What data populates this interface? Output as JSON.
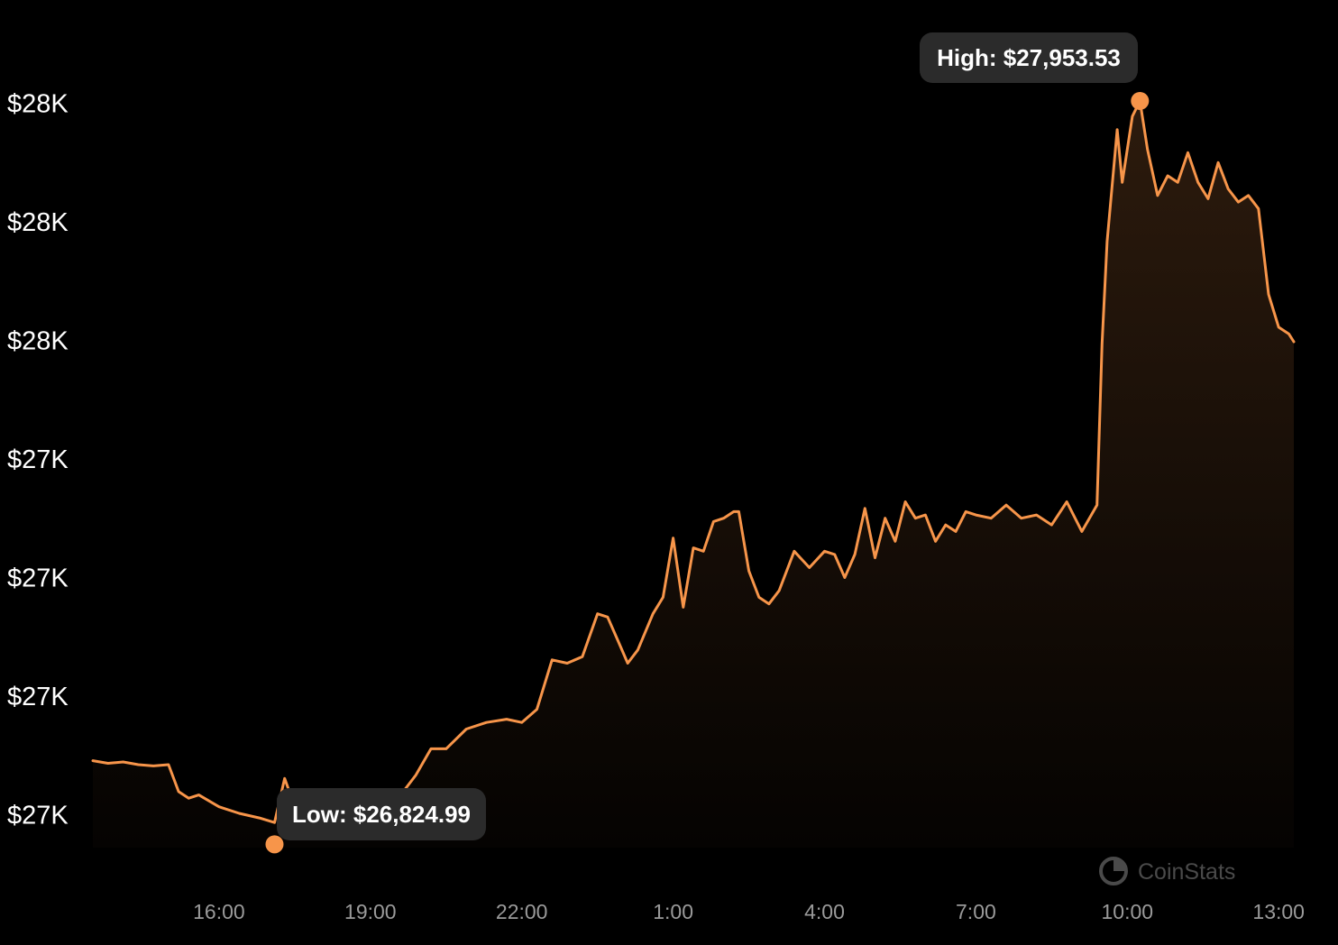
{
  "colors": {
    "background": "#000000",
    "line": "#f7954a",
    "tooltip_bg": "#2b2b2b",
    "watermark": "#4a4a4a"
  },
  "watermark": {
    "text": "CoinStats",
    "icon": "coinstats-logo-icon"
  },
  "chart_data": {
    "type": "area",
    "title": "",
    "xlabel": "",
    "ylabel": "",
    "grid": false,
    "legend": "none",
    "x_tick_labels": [
      "16:00",
      "19:00",
      "22:00",
      "1:00",
      "4:00",
      "7:00",
      "10:00",
      "13:00"
    ],
    "y_tick_labels": [
      "$28K",
      "$28K",
      "$28K",
      "$27K",
      "$27K",
      "$27K",
      "$27K"
    ],
    "y_tick_values": [
      27950,
      27770,
      27590,
      27410,
      27230,
      27050,
      26870
    ],
    "x_tick_hours": [
      16,
      19,
      22,
      25,
      28,
      31,
      34,
      37
    ],
    "xlim_hours": [
      13.5,
      37.3
    ],
    "ylim": [
      26820,
      28000
    ],
    "annotations": {
      "high": {
        "label": "High: $27,953.53",
        "value": 27953.53,
        "x_hour": 34.25
      },
      "low": {
        "label": "Low: $26,824.99",
        "value": 26824.99,
        "x_hour": 17.1
      }
    },
    "series": [
      {
        "x_hours": [
          13.5,
          13.8,
          14.1,
          14.4,
          14.7,
          15.0,
          15.2,
          15.4,
          15.6,
          16.0,
          16.4,
          16.8,
          17.1,
          17.3,
          17.5,
          17.8,
          18.2,
          18.6,
          19.0,
          19.3,
          19.6,
          19.9,
          20.2,
          20.5,
          20.9,
          21.3,
          21.7,
          22.0,
          22.3,
          22.6,
          22.9,
          23.2,
          23.5,
          23.7,
          23.9,
          24.1,
          24.3,
          24.6,
          24.8,
          25.0,
          25.2,
          25.4,
          25.6,
          25.8,
          26.0,
          26.2,
          26.3,
          26.5,
          26.7,
          26.9,
          27.1,
          27.4,
          27.7,
          28.0,
          28.2,
          28.4,
          28.6,
          28.8,
          29.0,
          29.2,
          29.4,
          29.6,
          29.8,
          30.0,
          30.2,
          30.4,
          30.6,
          30.8,
          31.0,
          31.3,
          31.6,
          31.9,
          32.2,
          32.5,
          32.8,
          33.1,
          33.4,
          33.5,
          33.6,
          33.8,
          33.9,
          34.1,
          34.25,
          34.4,
          34.6,
          34.8,
          35.0,
          35.2,
          35.4,
          35.6,
          35.8,
          36.0,
          36.2,
          36.4,
          36.6,
          36.8,
          37.0,
          37.2,
          37.3
        ],
        "values": [
          26952,
          26948,
          26950,
          26946,
          26944,
          26946,
          26905,
          26895,
          26900,
          26882,
          26872,
          26865,
          26858,
          26925,
          26882,
          26888,
          26900,
          26878,
          26890,
          26893,
          26900,
          26930,
          26970,
          26970,
          27000,
          27010,
          27015,
          27010,
          27030,
          27105,
          27100,
          27110,
          27175,
          27170,
          27135,
          27100,
          27120,
          27175,
          27200,
          27290,
          27185,
          27275,
          27270,
          27315,
          27320,
          27330,
          27330,
          27240,
          27200,
          27190,
          27210,
          27270,
          27245,
          27270,
          27265,
          27230,
          27265,
          27335,
          27260,
          27320,
          27285,
          27345,
          27320,
          27325,
          27285,
          27310,
          27300,
          27330,
          27325,
          27320,
          27340,
          27320,
          27325,
          27310,
          27345,
          27300,
          27340,
          27585,
          27740,
          27910,
          27830,
          27930,
          27953.53,
          27880,
          27810,
          27840,
          27830,
          27875,
          27830,
          27805,
          27860,
          27820,
          27800,
          27810,
          27790,
          27660,
          27610,
          27600,
          27588
        ]
      }
    ]
  }
}
